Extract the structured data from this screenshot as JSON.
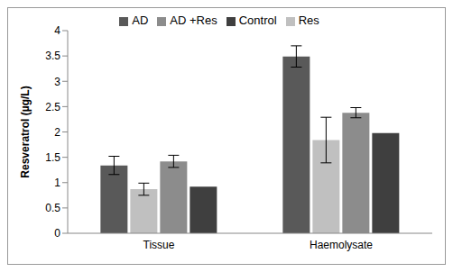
{
  "chart_data": {
    "type": "bar",
    "categories": [
      "Tissue",
      "Haemolysate"
    ],
    "y_label": "Resveratrol (µg/L)",
    "series": [
      {
        "name": "AD",
        "color": "#595959",
        "values": [
          1.34,
          3.49
        ],
        "errors": [
          0.18,
          0.21
        ]
      },
      {
        "name": "Res",
        "color": "#c0c0c0",
        "values": [
          0.87,
          1.84
        ],
        "errors": [
          0.12,
          0.45
        ]
      },
      {
        "name": "AD +Res",
        "color": "#8c8c8c",
        "values": [
          1.42,
          2.38
        ],
        "errors": [
          0.12,
          0.1
        ]
      },
      {
        "name": "Control",
        "color": "#3f3f3f",
        "values": [
          0.92,
          1.98
        ],
        "errors": [
          null,
          null
        ]
      }
    ],
    "ylim": [
      0,
      4
    ],
    "yticks": [
      0,
      0.5,
      1,
      1.5,
      2,
      2.5,
      3,
      3.5,
      4
    ],
    "grid": false,
    "legend": "top"
  }
}
